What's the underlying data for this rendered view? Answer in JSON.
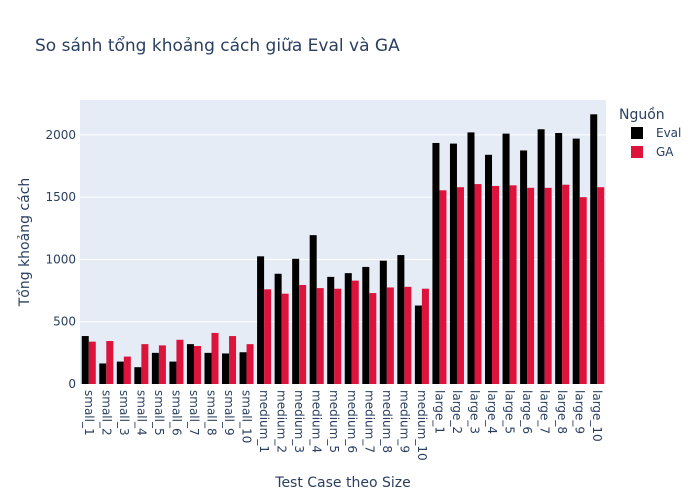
{
  "chart_data": {
    "type": "bar",
    "title": "So sánh tổng khoảng cách giữa Eval và GA",
    "xlabel": "Test Case theo Size",
    "ylabel": "Tổng khoảng cách",
    "ylim": [
      0,
      2280
    ],
    "yticks": [
      0,
      500,
      1000,
      1500,
      2000
    ],
    "grid": true,
    "legend": {
      "title": "Nguồn",
      "placement": "right"
    },
    "categories": [
      "small_1",
      "small_2",
      "small_3",
      "small_4",
      "small_5",
      "small_6",
      "small_7",
      "small_8",
      "small_9",
      "small_10",
      "medium_1",
      "medium_2",
      "medium_3",
      "medium_4",
      "medium_5",
      "medium_6",
      "medium_7",
      "medium_8",
      "medium_9",
      "medium_10",
      "large_1",
      "large_2",
      "large_3",
      "large_4",
      "large_5",
      "large_6",
      "large_7",
      "large_8",
      "large_9",
      "large_10"
    ],
    "series": [
      {
        "name": "Eval",
        "color": "#000000",
        "values": [
          385,
          165,
          180,
          135,
          250,
          180,
          320,
          250,
          245,
          255,
          1025,
          885,
          1005,
          1195,
          860,
          890,
          940,
          990,
          1035,
          630,
          1935,
          1930,
          2020,
          1840,
          2010,
          1875,
          2045,
          2015,
          1970,
          2165
        ]
      },
      {
        "name": "GA",
        "color": "#dc143c",
        "values": [
          340,
          345,
          220,
          320,
          310,
          355,
          305,
          410,
          385,
          320,
          760,
          725,
          795,
          770,
          765,
          830,
          730,
          775,
          780,
          765,
          1555,
          1580,
          1605,
          1590,
          1595,
          1575,
          1575,
          1600,
          1500,
          1580
        ]
      }
    ]
  }
}
